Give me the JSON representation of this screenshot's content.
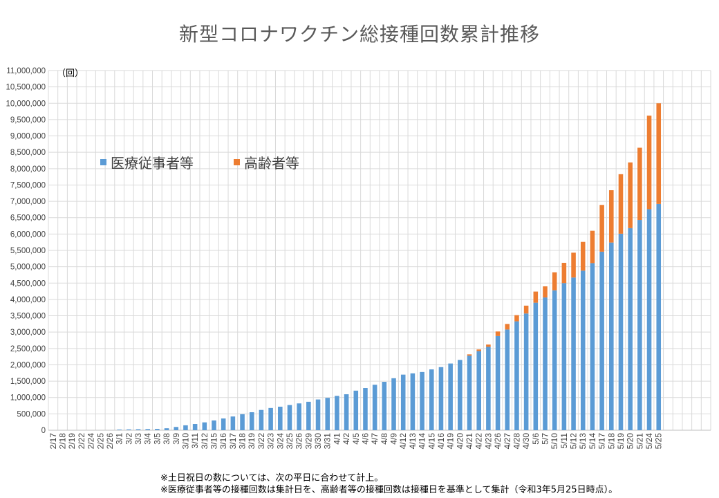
{
  "colors": {
    "medical": "#5b9bd5",
    "elderly": "#ed7d31",
    "grid": "#d9d9d9"
  },
  "notes": [
    "※土日祝日の数については、次の平日に合わせて計上。",
    "※医療従事者等の接種回数は集計日を、高齢者等の接種回数は接種日を基準として集計（令和3年5月25日時点）。"
  ],
  "chart_data": {
    "type": "bar",
    "stacked": true,
    "title": "新型コロナワクチン総接種回数累計推移",
    "unit_label": "（回）",
    "ylim": [
      0,
      11000000
    ],
    "ytick_step": 500000,
    "ytick_labels": [
      "0",
      "500,000",
      "1,000,000",
      "1,500,000",
      "2,000,000",
      "2,500,000",
      "3,000,000",
      "3,500,000",
      "4,000,000",
      "4,500,000",
      "5,000,000",
      "5,500,000",
      "6,000,000",
      "6,500,000",
      "7,000,000",
      "7,500,000",
      "8,000,000",
      "8,500,000",
      "9,000,000",
      "9,500,000",
      "10,000,000",
      "10,500,000",
      "11,000,000"
    ],
    "grid": true,
    "legend_position": "upper-left inside plot",
    "categories": [
      "2/17",
      "2/18",
      "2/19",
      "2/22",
      "2/24",
      "2/25",
      "2/26",
      "3/1",
      "3/2",
      "3/3",
      "3/4",
      "3/5",
      "3/8",
      "3/9",
      "3/10",
      "3/11",
      "3/12",
      "3/15",
      "3/16",
      "3/17",
      "3/18",
      "3/19",
      "3/22",
      "3/23",
      "3/24",
      "3/25",
      "3/26",
      "3/29",
      "3/30",
      "3/31",
      "4/1",
      "4/2",
      "4/5",
      "4/6",
      "4/7",
      "4/8",
      "4/9",
      "4/12",
      "4/13",
      "4/14",
      "4/15",
      "4/16",
      "4/19",
      "4/20",
      "4/21",
      "4/22",
      "4/23",
      "4/26",
      "4/27",
      "4/28",
      "4/30",
      "5/6",
      "5/7",
      "5/10",
      "5/11",
      "5/12",
      "5/13",
      "5/14",
      "5/17",
      "5/18",
      "5/19",
      "5/20",
      "5/21",
      "5/24",
      "5/25"
    ],
    "series": [
      {
        "name": "医療従事者等",
        "values": [
          0,
          0,
          0,
          0,
          0,
          0,
          0,
          20000,
          25000,
          30000,
          35000,
          40000,
          60000,
          100000,
          150000,
          190000,
          240000,
          300000,
          360000,
          420000,
          490000,
          550000,
          620000,
          680000,
          720000,
          770000,
          820000,
          870000,
          940000,
          990000,
          1050000,
          1100000,
          1210000,
          1290000,
          1390000,
          1480000,
          1590000,
          1700000,
          1740000,
          1780000,
          1860000,
          1930000,
          2040000,
          2150000,
          2280000,
          2420000,
          2550000,
          2880000,
          3080000,
          3330000,
          3570000,
          3900000,
          4060000,
          4280000,
          4500000,
          4670000,
          4880000,
          5110000,
          5460000,
          5740000,
          6010000,
          6180000,
          6430000,
          6760000,
          6920000
        ]
      },
      {
        "name": "高齢者等",
        "values": [
          0,
          0,
          0,
          0,
          0,
          0,
          0,
          0,
          0,
          0,
          0,
          0,
          0,
          0,
          0,
          0,
          0,
          0,
          0,
          0,
          0,
          0,
          0,
          0,
          0,
          0,
          0,
          0,
          0,
          0,
          0,
          0,
          0,
          0,
          0,
          0,
          0,
          0,
          0,
          0,
          0,
          0,
          0,
          0,
          40000,
          50000,
          70000,
          140000,
          170000,
          190000,
          240000,
          340000,
          340000,
          550000,
          620000,
          760000,
          880000,
          990000,
          1430000,
          1600000,
          1820000,
          2010000,
          2210000,
          2860000,
          3080000
        ]
      }
    ]
  }
}
